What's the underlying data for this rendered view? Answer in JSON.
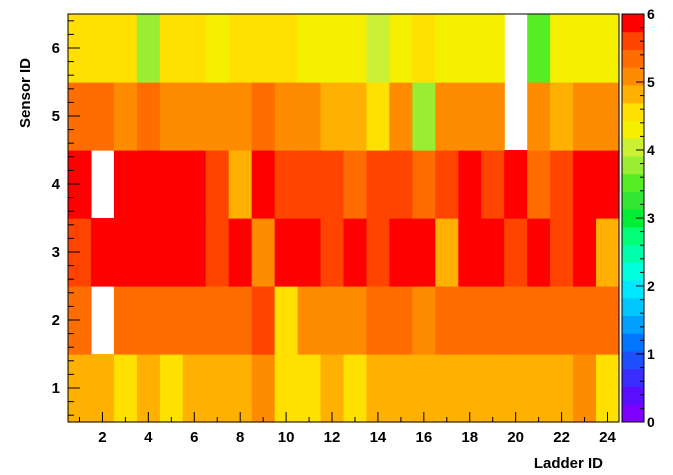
{
  "chart_data": {
    "type": "heatmap",
    "xlabel": "Ladder ID",
    "ylabel": "Sensor ID",
    "x_ticks": [
      "2",
      "4",
      "6",
      "8",
      "10",
      "12",
      "14",
      "16",
      "18",
      "20",
      "22",
      "24"
    ],
    "y_ticks": [
      "1",
      "2",
      "3",
      "4",
      "5",
      "6"
    ],
    "color_scale": {
      "min": 0,
      "max": 6,
      "ticks": [
        "0",
        "1",
        "2",
        "3",
        "4",
        "5",
        "6"
      ],
      "colors": [
        "#7f00ff",
        "#5a0dff",
        "#3a2cff",
        "#1d4fff",
        "#0075ff",
        "#00a0ff",
        "#00c8ff",
        "#00e8ff",
        "#00ffdd",
        "#00ffaa",
        "#00ff77",
        "#00ee33",
        "#33e633",
        "#55ee22",
        "#99ee33",
        "#ccf033",
        "#f5f000",
        "#ffe000",
        "#ffb000",
        "#ff8c00",
        "#ff6c00",
        "#ff4400",
        "#ff0000"
      ]
    },
    "x_range": [
      0.5,
      24.5
    ],
    "y_range": [
      0.5,
      6.5
    ],
    "ladders": [
      1,
      2,
      3,
      4,
      5,
      6,
      7,
      8,
      9,
      10,
      11,
      12,
      13,
      14,
      15,
      16,
      17,
      18,
      19,
      20,
      21,
      22,
      23,
      24
    ],
    "sensors": [
      1,
      2,
      3,
      4,
      5,
      6
    ],
    "z": [
      [
        4.8,
        4.8,
        4.6,
        4.8,
        4.6,
        4.8,
        4.8,
        4.8,
        5.2,
        4.6,
        4.6,
        4.8,
        4.6,
        4.8,
        4.8,
        4.8,
        4.8,
        4.8,
        4.8,
        4.8,
        4.8,
        4.8,
        5.2,
        4.6
      ],
      [
        5.4,
        null,
        5.4,
        5.4,
        5.4,
        5.4,
        5.4,
        5.4,
        5.7,
        4.6,
        5.2,
        5.2,
        5.2,
        5.4,
        5.4,
        5.2,
        5.4,
        5.4,
        5.4,
        5.4,
        5.4,
        5.4,
        5.4,
        5.4
      ],
      [
        5.7,
        5.85,
        5.9,
        5.9,
        5.9,
        5.9,
        5.7,
        5.85,
        5.2,
        5.9,
        5.9,
        5.7,
        5.9,
        5.7,
        5.9,
        5.9,
        4.8,
        5.9,
        5.9,
        5.7,
        5.9,
        5.7,
        5.9,
        4.8
      ],
      [
        5.85,
        null,
        5.9,
        5.9,
        5.9,
        5.9,
        5.7,
        4.8,
        5.9,
        5.7,
        5.7,
        5.7,
        5.4,
        5.7,
        5.7,
        5.4,
        5.7,
        5.9,
        5.7,
        5.9,
        5.4,
        5.7,
        5.9,
        5.9
      ],
      [
        5.4,
        5.4,
        5.2,
        5.4,
        5.2,
        5.2,
        5.2,
        5.2,
        5.4,
        5.2,
        5.2,
        4.8,
        4.8,
        4.6,
        5.2,
        3.8,
        5.2,
        5.2,
        5.2,
        null,
        5.2,
        4.8,
        5.2,
        5.2
      ],
      [
        4.6,
        4.6,
        4.6,
        3.8,
        4.6,
        4.6,
        4.4,
        4.6,
        4.6,
        4.6,
        4.4,
        4.4,
        4.4,
        4.0,
        4.4,
        4.6,
        4.4,
        4.4,
        4.4,
        null,
        3.6,
        4.4,
        4.2,
        4.4
      ]
    ]
  }
}
